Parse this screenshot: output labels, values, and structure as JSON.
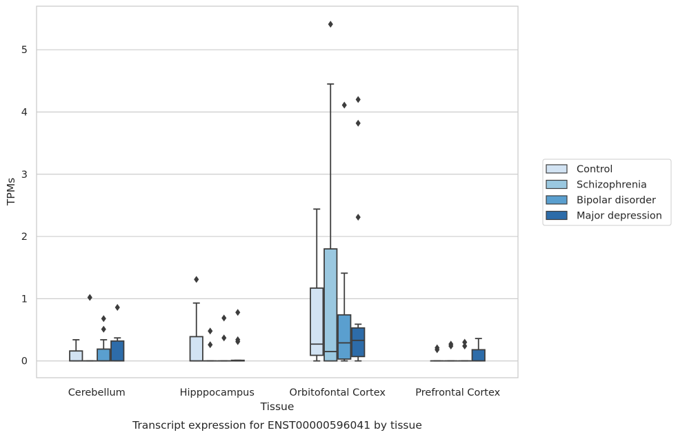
{
  "chart_data": {
    "type": "box",
    "caption": "Transcript expression for ENST00000596041 by tissue",
    "xlabel": "Tissue",
    "ylabel": "TPMs",
    "ylim": [
      -0.27,
      5.7
    ],
    "yticks": [
      0,
      1,
      2,
      3,
      4,
      5
    ],
    "grid": true,
    "legend_position": "right",
    "categories": [
      "Cerebellum",
      "Hipppocampus",
      "Orbitofontal Cortex",
      "Prefrontal Cortex"
    ],
    "series": [
      {
        "name": "Control",
        "color": "#d2e3f3",
        "boxes": [
          {
            "whislo": 0,
            "q1": 0,
            "med": 0,
            "q3": 0.16,
            "whishi": 0.34,
            "fliers": []
          },
          {
            "whislo": 0,
            "q1": 0,
            "med": 0,
            "q3": 0.39,
            "whishi": 0.93,
            "fliers": [
              1.31
            ]
          },
          {
            "whislo": 0,
            "q1": 0.09,
            "med": 0.27,
            "q3": 1.17,
            "whishi": 2.44,
            "fliers": []
          },
          {
            "whislo": 0,
            "q1": 0,
            "med": 0,
            "q3": 0,
            "whishi": 0,
            "fliers": [
              0.18,
              0.21
            ]
          }
        ]
      },
      {
        "name": "Schizophrenia",
        "color": "#9ac8e0",
        "boxes": [
          {
            "whislo": 0,
            "q1": 0,
            "med": 0,
            "q3": 0,
            "whishi": 0,
            "fliers": [
              1.02
            ]
          },
          {
            "whislo": 0,
            "q1": 0,
            "med": 0,
            "q3": 0,
            "whishi": 0,
            "fliers": [
              0.26,
              0.48
            ]
          },
          {
            "whislo": 0,
            "q1": 0,
            "med": 0.15,
            "q3": 1.8,
            "whishi": 4.45,
            "fliers": [
              5.41
            ]
          },
          {
            "whislo": 0,
            "q1": 0,
            "med": 0,
            "q3": 0,
            "whishi": 0,
            "fliers": [
              0.24,
              0.27
            ]
          }
        ]
      },
      {
        "name": "Bipolar disorder",
        "color": "#5a9fcf",
        "boxes": [
          {
            "whislo": 0,
            "q1": 0,
            "med": 0,
            "q3": 0.19,
            "whishi": 0.34,
            "fliers": [
              0.51,
              0.68
            ]
          },
          {
            "whislo": 0,
            "q1": 0,
            "med": 0,
            "q3": 0,
            "whishi": 0,
            "fliers": [
              0.37,
              0.69
            ]
          },
          {
            "whislo": 0,
            "q1": 0.03,
            "med": 0.29,
            "q3": 0.74,
            "whishi": 1.41,
            "fliers": [
              4.11
            ]
          },
          {
            "whislo": 0,
            "q1": 0,
            "med": 0,
            "q3": 0,
            "whishi": 0,
            "fliers": [
              0.24,
              0.3
            ]
          }
        ]
      },
      {
        "name": "Major depression",
        "color": "#2d6ca9",
        "boxes": [
          {
            "whislo": 0,
            "q1": 0,
            "med": 0,
            "q3": 0.32,
            "whishi": 0.37,
            "fliers": [
              0.86
            ]
          },
          {
            "whislo": 0,
            "q1": 0,
            "med": 0,
            "q3": 0.01,
            "whishi": 0.01,
            "fliers": [
              0.31,
              0.34,
              0.78
            ]
          },
          {
            "whislo": 0,
            "q1": 0.07,
            "med": 0.33,
            "q3": 0.53,
            "whishi": 0.59,
            "fliers": [
              2.31,
              3.82,
              4.2
            ]
          },
          {
            "whislo": 0,
            "q1": 0,
            "med": 0,
            "q3": 0.18,
            "whishi": 0.36,
            "fliers": []
          }
        ]
      }
    ]
  }
}
